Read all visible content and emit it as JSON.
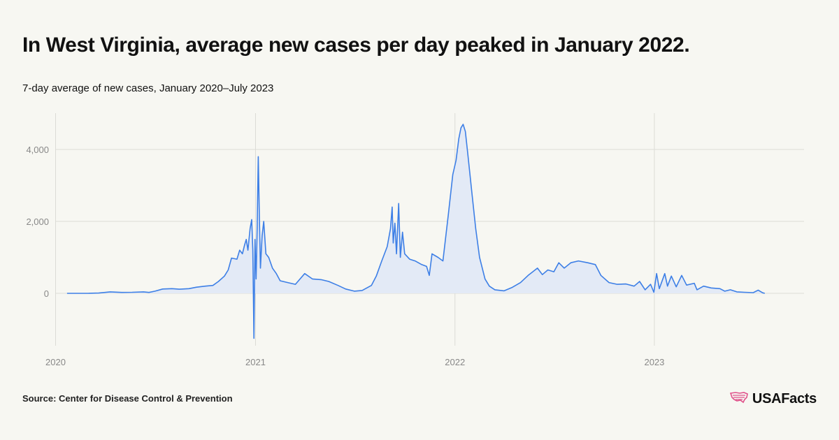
{
  "chart_data": {
    "type": "area",
    "title": "In West Virginia, average new cases per day peaked in January 2022.",
    "subtitle": "7-day average of new cases, January 2020–July 2023",
    "xlabel": "",
    "ylabel": "",
    "x_range": [
      "2020-01",
      "2023-08"
    ],
    "ylim": [
      -1300,
      4800
    ],
    "y_ticks": [
      0,
      2000,
      4000
    ],
    "y_tick_labels": [
      "0",
      "2,000",
      "4,000"
    ],
    "x_ticks": [
      "2020",
      "2021",
      "2022",
      "2023"
    ],
    "grid": true,
    "series": [
      {
        "name": "7-day average of new cases",
        "color": "#3d7fe6",
        "fill": "#e3eaf6",
        "points": [
          [
            "2020-01-22",
            0
          ],
          [
            "2020-03-01",
            0
          ],
          [
            "2020-03-20",
            8
          ],
          [
            "2020-04-10",
            40
          ],
          [
            "2020-05-01",
            25
          ],
          [
            "2020-05-20",
            30
          ],
          [
            "2020-06-10",
            40
          ],
          [
            "2020-06-20",
            25
          ],
          [
            "2020-07-01",
            60
          ],
          [
            "2020-07-15",
            120
          ],
          [
            "2020-08-01",
            130
          ],
          [
            "2020-08-15",
            115
          ],
          [
            "2020-09-01",
            130
          ],
          [
            "2020-09-15",
            170
          ],
          [
            "2020-10-01",
            200
          ],
          [
            "2020-10-15",
            220
          ],
          [
            "2020-10-25",
            330
          ],
          [
            "2020-11-05",
            480
          ],
          [
            "2020-11-12",
            650
          ],
          [
            "2020-11-18",
            980
          ],
          [
            "2020-11-28",
            950
          ],
          [
            "2020-12-03",
            1200
          ],
          [
            "2020-12-08",
            1100
          ],
          [
            "2020-12-12",
            1350
          ],
          [
            "2020-12-15",
            1500
          ],
          [
            "2020-12-18",
            1200
          ],
          [
            "2020-12-22",
            1800
          ],
          [
            "2020-12-25",
            2050
          ],
          [
            "2020-12-27",
            1200
          ],
          [
            "2020-12-29",
            -1250
          ],
          [
            "2020-12-31",
            1500
          ],
          [
            "2021-01-02",
            400
          ],
          [
            "2021-01-04",
            1800
          ],
          [
            "2021-01-06",
            3800
          ],
          [
            "2021-01-08",
            2100
          ],
          [
            "2021-01-10",
            700
          ],
          [
            "2021-01-13",
            1600
          ],
          [
            "2021-01-16",
            2000
          ],
          [
            "2021-01-20",
            1100
          ],
          [
            "2021-01-25",
            1000
          ],
          [
            "2021-02-01",
            700
          ],
          [
            "2021-02-08",
            550
          ],
          [
            "2021-02-15",
            350
          ],
          [
            "2021-03-01",
            300
          ],
          [
            "2021-03-15",
            250
          ],
          [
            "2021-04-01",
            550
          ],
          [
            "2021-04-15",
            400
          ],
          [
            "2021-05-01",
            380
          ],
          [
            "2021-05-15",
            330
          ],
          [
            "2021-06-01",
            220
          ],
          [
            "2021-06-15",
            120
          ],
          [
            "2021-07-01",
            60
          ],
          [
            "2021-07-15",
            80
          ],
          [
            "2021-08-01",
            220
          ],
          [
            "2021-08-10",
            480
          ],
          [
            "2021-08-20",
            900
          ],
          [
            "2021-08-30",
            1300
          ],
          [
            "2021-09-05",
            1800
          ],
          [
            "2021-09-08",
            2400
          ],
          [
            "2021-09-10",
            1400
          ],
          [
            "2021-09-13",
            1950
          ],
          [
            "2021-09-16",
            1100
          ],
          [
            "2021-09-20",
            2500
          ],
          [
            "2021-09-23",
            1000
          ],
          [
            "2021-09-27",
            1700
          ],
          [
            "2021-10-01",
            1100
          ],
          [
            "2021-10-10",
            950
          ],
          [
            "2021-10-20",
            900
          ],
          [
            "2021-11-01",
            800
          ],
          [
            "2021-11-10",
            750
          ],
          [
            "2021-11-15",
            500
          ],
          [
            "2021-11-20",
            1100
          ],
          [
            "2021-12-01",
            1000
          ],
          [
            "2021-12-10",
            900
          ],
          [
            "2021-12-20",
            2200
          ],
          [
            "2021-12-28",
            3300
          ],
          [
            "2022-01-03",
            3700
          ],
          [
            "2022-01-08",
            4300
          ],
          [
            "2022-01-12",
            4600
          ],
          [
            "2022-01-16",
            4700
          ],
          [
            "2022-01-20",
            4500
          ],
          [
            "2022-01-25",
            3800
          ],
          [
            "2022-02-01",
            2800
          ],
          [
            "2022-02-08",
            1800
          ],
          [
            "2022-02-15",
            1000
          ],
          [
            "2022-02-25",
            400
          ],
          [
            "2022-03-05",
            200
          ],
          [
            "2022-03-15",
            100
          ],
          [
            "2022-04-01",
            70
          ],
          [
            "2022-04-15",
            160
          ],
          [
            "2022-05-01",
            300
          ],
          [
            "2022-05-15",
            500
          ],
          [
            "2022-06-01",
            700
          ],
          [
            "2022-06-10",
            520
          ],
          [
            "2022-06-20",
            650
          ],
          [
            "2022-07-01",
            600
          ],
          [
            "2022-07-10",
            850
          ],
          [
            "2022-07-20",
            700
          ],
          [
            "2022-08-01",
            850
          ],
          [
            "2022-08-15",
            900
          ],
          [
            "2022-09-01",
            850
          ],
          [
            "2022-09-15",
            800
          ],
          [
            "2022-09-25",
            500
          ],
          [
            "2022-10-10",
            300
          ],
          [
            "2022-10-25",
            250
          ],
          [
            "2022-11-10",
            260
          ],
          [
            "2022-11-25",
            200
          ],
          [
            "2022-12-05",
            330
          ],
          [
            "2022-12-15",
            100
          ],
          [
            "2022-12-25",
            250
          ],
          [
            "2022-12-31",
            30
          ],
          [
            "2023-01-05",
            550
          ],
          [
            "2023-01-10",
            130
          ],
          [
            "2023-01-20",
            550
          ],
          [
            "2023-01-25",
            200
          ],
          [
            "2023-02-01",
            480
          ],
          [
            "2023-02-10",
            180
          ],
          [
            "2023-02-20",
            500
          ],
          [
            "2023-03-01",
            230
          ],
          [
            "2023-03-15",
            280
          ],
          [
            "2023-03-20",
            100
          ],
          [
            "2023-04-01",
            200
          ],
          [
            "2023-04-15",
            150
          ],
          [
            "2023-05-01",
            130
          ],
          [
            "2023-05-10",
            60
          ],
          [
            "2023-05-20",
            100
          ],
          [
            "2023-06-01",
            40
          ],
          [
            "2023-06-15",
            30
          ],
          [
            "2023-07-01",
            20
          ],
          [
            "2023-07-10",
            90
          ],
          [
            "2023-07-18",
            15
          ],
          [
            "2023-07-22",
            0
          ]
        ]
      }
    ]
  },
  "footer": {
    "source": "Source: Center for Disease Control & Prevention",
    "brand": "USAFacts"
  },
  "colors": {
    "line": "#3d7fe6",
    "area": "#e3eaf6",
    "grid": "#dcdcd6",
    "brand_icon": "#e0518a"
  }
}
